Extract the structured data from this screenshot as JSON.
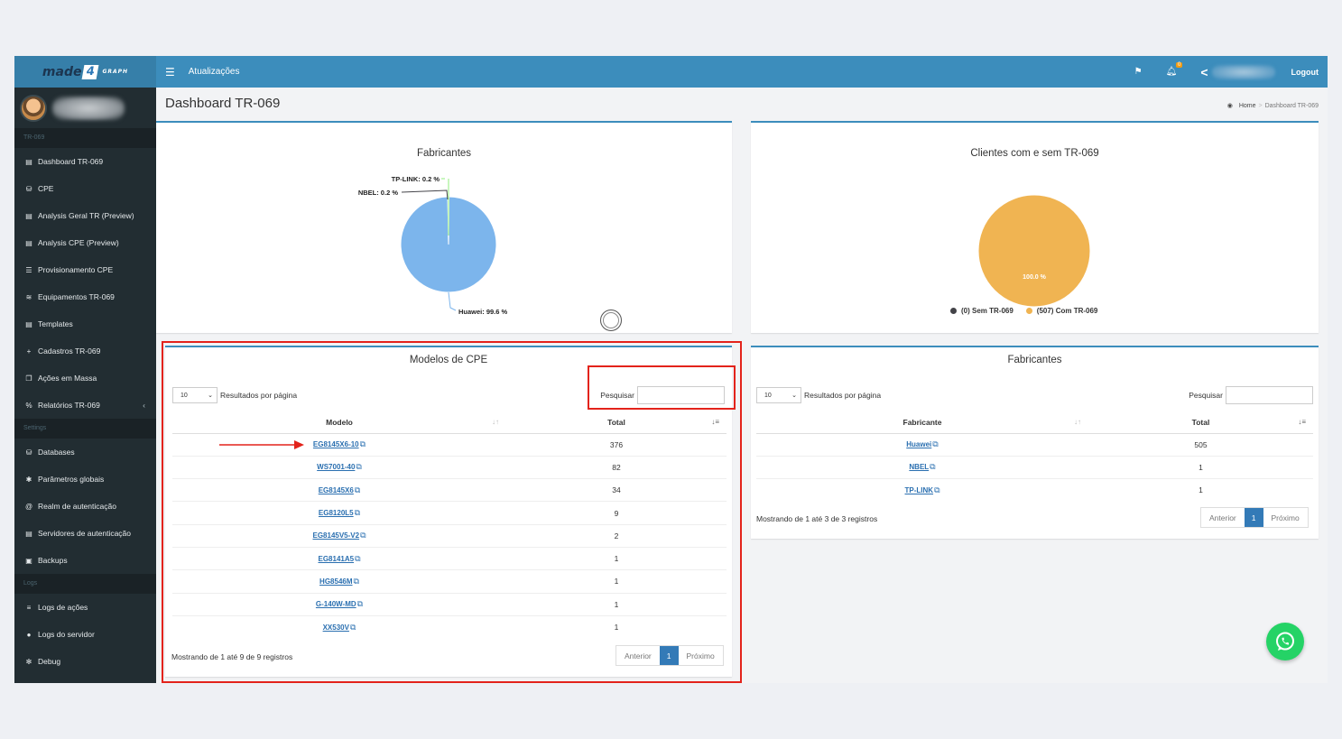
{
  "brand": {
    "logo_text": "made",
    "logo_four": "4",
    "logo_sub": "GRAPH"
  },
  "topbar": {
    "menu_title": "Atualizações",
    "notif_count": "0",
    "logout": "Logout"
  },
  "sidebar": {
    "sections": [
      {
        "header": "TR-069",
        "items": [
          {
            "icon": "file-icon",
            "glyph": "▤",
            "label": "Dashboard TR-069"
          },
          {
            "icon": "database-icon",
            "glyph": "⛁",
            "label": "CPE"
          },
          {
            "icon": "file-icon",
            "glyph": "▤",
            "label": "Analysis Geral TR (Preview)"
          },
          {
            "icon": "file-icon",
            "glyph": "▤",
            "label": "Analysis CPE (Preview)"
          },
          {
            "icon": "list-icon",
            "glyph": "☰",
            "label": "Provisionamento CPE"
          },
          {
            "icon": "wifi-icon",
            "glyph": "≋",
            "label": "Equipamentos TR-069"
          },
          {
            "icon": "file-icon",
            "glyph": "▤",
            "label": "Templates"
          },
          {
            "icon": "plus-icon",
            "glyph": "+",
            "label": "Cadastros TR-069"
          },
          {
            "icon": "copy-icon",
            "glyph": "❐",
            "label": "Ações em Massa"
          },
          {
            "icon": "chart-icon",
            "glyph": "%",
            "label": "Relatórios TR-069"
          }
        ]
      },
      {
        "header": "Settings",
        "items": [
          {
            "icon": "database-icon",
            "glyph": "⛁",
            "label": "Databases"
          },
          {
            "icon": "gear-icon",
            "glyph": "✱",
            "label": "Parâmetros globais"
          },
          {
            "icon": "at-icon",
            "glyph": "@",
            "label": "Realm de autenticação"
          },
          {
            "icon": "server-icon",
            "glyph": "▤",
            "label": "Servidores de autenticação"
          },
          {
            "icon": "save-icon",
            "glyph": "▣",
            "label": "Backups"
          }
        ]
      },
      {
        "header": "Logs",
        "items": [
          {
            "icon": "list-icon",
            "glyph": "≡",
            "label": "Logs de ações"
          },
          {
            "icon": "info-icon",
            "glyph": "●",
            "label": "Logs do servidor"
          },
          {
            "icon": "bug-icon",
            "glyph": "✻",
            "label": "Debug"
          }
        ]
      }
    ]
  },
  "page": {
    "title": "Dashboard TR-069",
    "breadcrumb_home": "Home",
    "breadcrumb_current": "Dashboard TR-069"
  },
  "chart_data": [
    {
      "type": "pie",
      "title": "Fabricantes",
      "slices": [
        {
          "label": "Huawei: 99.6 %",
          "value": 99.6,
          "color": "#7cb5ec"
        },
        {
          "label": "NBEL: 0.2 %",
          "value": 0.2,
          "color": "#434348"
        },
        {
          "label": "TP-LINK: 0.2 %",
          "value": 0.2,
          "color": "#90ed7d"
        }
      ]
    },
    {
      "type": "pie",
      "title": "Clientes com e sem TR-069",
      "slices": [
        {
          "label": "100.0 %",
          "value": 100.0,
          "color": "#f0b452"
        }
      ],
      "legend": [
        {
          "label": "(0) Sem TR-069",
          "color": "#434348"
        },
        {
          "label": "(507) Com TR-069",
          "color": "#f0b452"
        }
      ]
    }
  ],
  "models_table": {
    "title": "Modelos de CPE",
    "page_size": "10",
    "page_size_label": "Resultados por página",
    "search_label": "Pesquisar",
    "columns": [
      "Modelo",
      "Total"
    ],
    "rows": [
      {
        "model": "EG8145X6-10",
        "total": "376"
      },
      {
        "model": "WS7001-40",
        "total": "82"
      },
      {
        "model": "EG8145X6",
        "total": "34"
      },
      {
        "model": "EG8120L5",
        "total": "9"
      },
      {
        "model": "EG8145V5-V2",
        "total": "2"
      },
      {
        "model": "EG8141A5",
        "total": "1"
      },
      {
        "model": "HG8546M",
        "total": "1"
      },
      {
        "model": "G-140W-MD",
        "total": "1"
      },
      {
        "model": "XX530V",
        "total": "1"
      }
    ],
    "info": "Mostrando de 1 até 9 de 9 registros",
    "prev": "Anterior",
    "current_page": "1",
    "next": "Próximo"
  },
  "vendors_table": {
    "title": "Fabricantes",
    "page_size": "10",
    "page_size_label": "Resultados por página",
    "search_label": "Pesquisar",
    "columns": [
      "Fabricante",
      "Total"
    ],
    "rows": [
      {
        "vendor": "Huawei",
        "total": "505"
      },
      {
        "vendor": "NBEL",
        "total": "1"
      },
      {
        "vendor": "TP-LINK",
        "total": "1"
      }
    ],
    "info": "Mostrando de 1 até 3 de 3 registros",
    "prev": "Anterior",
    "current_page": "1",
    "next": "Próximo"
  },
  "colors": {
    "accent": "#3c8dbc",
    "sidebar": "#222d32",
    "highlight": "#e3231b",
    "link": "#2a6fb0"
  }
}
